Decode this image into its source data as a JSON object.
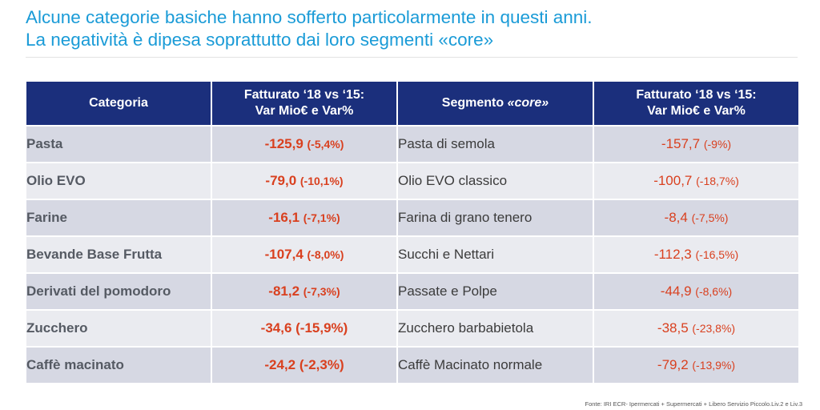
{
  "title": {
    "line1": "Alcune categorie basiche hanno sofferto particolarmente in questi anni.",
    "line2": "La negatività è dipesa soprattutto dai loro segmenti «core»"
  },
  "table": {
    "headers": {
      "categoria": "Categoria",
      "cat_var_line1": "Fatturato ‘18 vs ‘15:",
      "cat_var_line2": "Var Mio€ e Var%",
      "segmento_prefix": "Segmento ",
      "segmento_core": "«core»",
      "seg_var_line1": "Fatturato ‘18 vs ‘15:",
      "seg_var_line2": "Var Mio€ e Var%"
    },
    "rows": [
      {
        "categoria": "Pasta",
        "cat_val": "-125,9",
        "cat_pct": "(-5,4%)",
        "segmento": "Pasta di semola",
        "seg_val": "-157,7",
        "seg_pct": "(-9%)"
      },
      {
        "categoria": "Olio EVO",
        "cat_val": "-79,0",
        "cat_pct": "(-10,1%)",
        "segmento": "Olio EVO classico",
        "seg_val": "-100,7",
        "seg_pct": "(-18,7%)"
      },
      {
        "categoria": "Farine",
        "cat_val": "-16,1",
        "cat_pct": "(-7,1%)",
        "segmento": "Farina di grano tenero",
        "seg_val": "-8,4",
        "seg_pct": "(-7,5%)"
      },
      {
        "categoria": "Bevande Base Frutta",
        "cat_val": "-107,4",
        "cat_pct": "(-8,0%)",
        "segmento": "Succhi e Nettari",
        "seg_val": "-112,3",
        "seg_pct": "(-16,5%)"
      },
      {
        "categoria": "Derivati del pomodoro",
        "cat_val": "-81,2",
        "cat_pct": "(-7,3%)",
        "segmento": "Passate e Polpe",
        "seg_val": "-44,9",
        "seg_pct": "(-8,6%)"
      },
      {
        "categoria": "Zucchero",
        "cat_val": "-34,6",
        "cat_pct": "(-15,9%)",
        "segmento": "Zucchero barbabietola",
        "seg_val": "-38,5",
        "seg_pct": "(-23,8%)"
      },
      {
        "categoria": "Caffè macinato",
        "cat_val": "-24,2",
        "cat_pct": "(-2,3%)",
        "segmento": "Caffè Macinato normale",
        "seg_val": "-79,2",
        "seg_pct": "(-13,9%)"
      }
    ]
  },
  "source": "Fonte: IRI ECR- Ipermercati + Supermercati + Libero Servizio Piccolo.Liv.2 e Liv.3",
  "colors": {
    "title": "#1a9bd7",
    "header_bg": "#1b2f7c",
    "negative": "#d9401f",
    "row_dark": "#d6d8e3",
    "row_light": "#eaebf0"
  }
}
